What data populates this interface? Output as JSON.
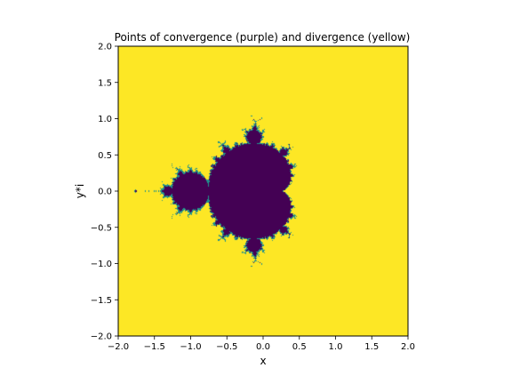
{
  "chart_data": {
    "type": "heatmap",
    "title": "Points of convergence (purple) and divergence (yellow)",
    "xlabel": "x",
    "ylabel": "y*i",
    "xlim": [
      -2.0,
      2.0
    ],
    "ylim": [
      -2.0,
      2.0
    ],
    "x_ticks": [
      "−2.0",
      "−1.5",
      "−1.0",
      "−0.5",
      "0.0",
      "0.5",
      "1.0",
      "1.5",
      "2.0"
    ],
    "y_ticks": [
      "2.0",
      "1.5",
      "1.0",
      "0.5",
      "0.0",
      "−0.5",
      "−1.0",
      "−1.5",
      "−2.0"
    ],
    "x_tick_values": [
      -2.0,
      -1.5,
      -1.0,
      -0.5,
      0.0,
      0.5,
      1.0,
      1.5,
      2.0
    ],
    "y_tick_values": [
      2.0,
      1.5,
      1.0,
      0.5,
      0.0,
      -0.5,
      -1.0,
      -1.5,
      -2.0
    ],
    "set": "Mandelbrot set z -> z^2 + c",
    "classes": [
      {
        "name": "convergence",
        "color": "#440154"
      },
      {
        "name": "divergence",
        "color": "#fde725"
      },
      {
        "name": "boundary",
        "color": "#21918c"
      }
    ],
    "grid": false
  }
}
